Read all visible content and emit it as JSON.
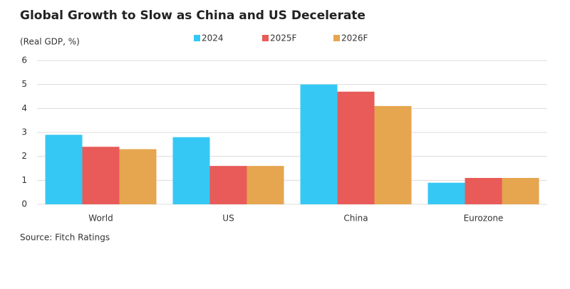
{
  "chart_data": {
    "type": "bar",
    "title": "Global Growth to Slow as China and US Decelerate",
    "ylabel": "(Real GDP, %)",
    "categories": [
      "World",
      "US",
      "China",
      "Eurozone"
    ],
    "series": [
      {
        "name": "2024",
        "color": "#35c8f4",
        "values": [
          2.9,
          2.8,
          5.0,
          0.9
        ]
      },
      {
        "name": "2025F",
        "color": "#e85b58",
        "values": [
          2.4,
          1.6,
          4.7,
          1.1
        ]
      },
      {
        "name": "2026F",
        "color": "#e6a54f",
        "values": [
          2.3,
          1.6,
          4.1,
          1.1
        ]
      }
    ],
    "ylim": [
      0,
      6
    ],
    "yticks": [
      0,
      1,
      2,
      3,
      4,
      5,
      6
    ],
    "grid": true,
    "legend": "top",
    "source": "Source: Fitch Ratings"
  }
}
